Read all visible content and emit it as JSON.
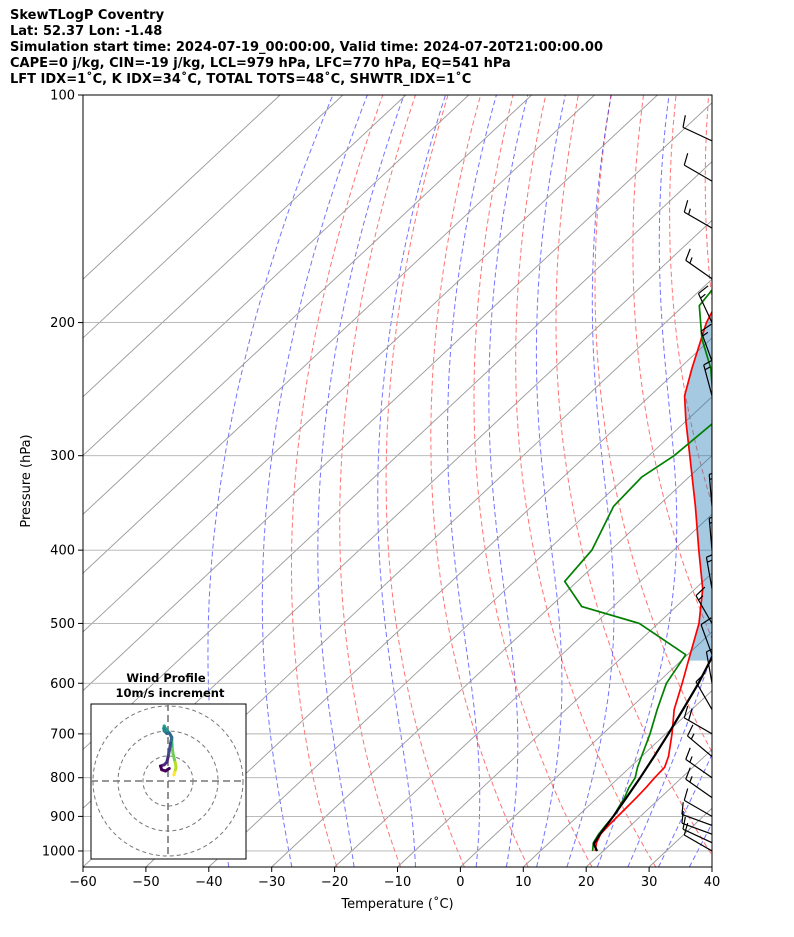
{
  "header": {
    "lines": [
      "SkewTLogP Coventry",
      "Lat: 52.37   Lon: -1.48",
      "Simulation start time: 2024-07-19_00:00:00, Valid time: 2024-07-20T21:00:00.00",
      "CAPE=0 j/kg, CIN=-19 j/kg, LCL=979 hPa, LFC=770 hPa, EQ=541 hPa",
      "LFT IDX=1˚C, K IDX=34˚C, TOTAL TOTS=48˚C, SHWTR_IDX=1˚C"
    ]
  },
  "chart_data": {
    "type": "line",
    "subtype": "skew-T log-P diagram",
    "xlabel": "Temperature (˚C)",
    "ylabel": "Pressure (hPa)",
    "xlim": [
      -60,
      40
    ],
    "ylim": [
      1050,
      100
    ],
    "y_scale": "log",
    "xticks": [
      -60,
      -50,
      -40,
      -30,
      -20,
      -10,
      0,
      10,
      20,
      30,
      40
    ],
    "xtick_labels": [
      "−60",
      "−50",
      "−40",
      "−30",
      "−20",
      "−10",
      "0",
      "10",
      "20",
      "30",
      "40"
    ],
    "yticks": [
      100,
      200,
      300,
      400,
      500,
      600,
      700,
      800,
      900,
      1000
    ],
    "ytick_labels": [
      "100",
      "200",
      "300",
      "400",
      "500",
      "600",
      "700",
      "800",
      "900",
      "1000"
    ],
    "grid": true,
    "series": [
      {
        "role": "temperature",
        "color": "#ff0000",
        "points": [
          [
            1000,
            18.7
          ],
          [
            975,
            17.5
          ],
          [
            950,
            16.7
          ],
          [
            925,
            16.5
          ],
          [
            900,
            16.4
          ],
          [
            875,
            16.3
          ],
          [
            850,
            16.2
          ],
          [
            825,
            16.0
          ],
          [
            800,
            15.7
          ],
          [
            775,
            15.5
          ],
          [
            750,
            14.3
          ],
          [
            700,
            11.0
          ],
          [
            650,
            7.2
          ],
          [
            600,
            4.0
          ],
          [
            550,
            0.4
          ],
          [
            500,
            -3.5
          ],
          [
            450,
            -8.8
          ],
          [
            400,
            -16.0
          ],
          [
            350,
            -24.0
          ],
          [
            300,
            -33.5
          ],
          [
            270,
            -40.0
          ],
          [
            250,
            -44.5
          ],
          [
            230,
            -48.0
          ],
          [
            200,
            -53.5
          ],
          [
            180,
            -56.5
          ],
          [
            160,
            -60.5
          ],
          [
            150,
            -62.5
          ],
          [
            130,
            -68.0
          ],
          [
            115,
            -72.0
          ],
          [
            100,
            -76.0
          ]
        ]
      },
      {
        "role": "dewpoint",
        "color": "#008000",
        "points": [
          [
            1000,
            18.3
          ],
          [
            975,
            17.0
          ],
          [
            950,
            16.4
          ],
          [
            925,
            16.0
          ],
          [
            900,
            15.7
          ],
          [
            875,
            15.0
          ],
          [
            850,
            14.3
          ],
          [
            825,
            13.3
          ],
          [
            800,
            12.6
          ],
          [
            775,
            11.2
          ],
          [
            750,
            10.0
          ],
          [
            700,
            7.5
          ],
          [
            650,
            4.5
          ],
          [
            600,
            1.5
          ],
          [
            550,
            -0.3
          ],
          [
            500,
            -13.0
          ],
          [
            475,
            -25.0
          ],
          [
            440,
            -32.0
          ],
          [
            400,
            -33.0
          ],
          [
            350,
            -37.0
          ],
          [
            320,
            -37.5
          ],
          [
            300,
            -36.0
          ],
          [
            270,
            -35.3
          ],
          [
            250,
            -40.0
          ],
          [
            230,
            -45.0
          ],
          [
            210,
            -51.5
          ],
          [
            190,
            -57.5
          ],
          [
            170,
            -59.0
          ],
          [
            150,
            -62.0
          ],
          [
            100,
            -77.0
          ]
        ]
      },
      {
        "role": "parcel",
        "color": "#000000",
        "points": [
          [
            1000,
            19.0
          ],
          [
            979,
            17.3
          ],
          [
            950,
            16.6
          ],
          [
            900,
            15.7
          ],
          [
            850,
            14.6
          ],
          [
            800,
            13.4
          ],
          [
            750,
            12.0
          ],
          [
            700,
            10.4
          ],
          [
            650,
            8.6
          ],
          [
            600,
            6.6
          ],
          [
            550,
            4.1
          ],
          [
            500,
            1.0
          ],
          [
            450,
            -2.7
          ],
          [
            400,
            -7.2
          ],
          [
            350,
            -12.7
          ],
          [
            300,
            -19.6
          ],
          [
            270,
            -24.5
          ],
          [
            250,
            -28.2
          ],
          [
            200,
            -39.3
          ],
          [
            150,
            -53.9
          ],
          [
            120,
            -65.0
          ],
          [
            100,
            -74.5
          ]
        ]
      }
    ],
    "dry_adiabats_theta_K": [
      250,
      260,
      270,
      280,
      290,
      300,
      310,
      320,
      330,
      340,
      350,
      360,
      370,
      380,
      390,
      400,
      410,
      420,
      430,
      440,
      450,
      460
    ],
    "moist_adiabats_thetaw_C": [
      -40,
      -30,
      -20,
      -10,
      0,
      5,
      10,
      15,
      20,
      25,
      30,
      35,
      40
    ],
    "isotherm_step_C": 10,
    "wind_barbs": {
      "x_temp": 40,
      "levels": [
        {
          "p": 1000,
          "speed_kt": 10,
          "dir_deg": 300
        },
        {
          "p": 975,
          "speed_kt": 10,
          "dir_deg": 295
        },
        {
          "p": 950,
          "speed_kt": 10,
          "dir_deg": 290
        },
        {
          "p": 925,
          "speed_kt": 10,
          "dir_deg": 290
        },
        {
          "p": 900,
          "speed_kt": 10,
          "dir_deg": 300
        },
        {
          "p": 850,
          "speed_kt": 15,
          "dir_deg": 305
        },
        {
          "p": 800,
          "speed_kt": 15,
          "dir_deg": 305
        },
        {
          "p": 750,
          "speed_kt": 15,
          "dir_deg": 310
        },
        {
          "p": 700,
          "speed_kt": 20,
          "dir_deg": 300
        },
        {
          "p": 650,
          "speed_kt": 10,
          "dir_deg": 330
        },
        {
          "p": 600,
          "speed_kt": 10,
          "dir_deg": 350
        },
        {
          "p": 550,
          "speed_kt": 10,
          "dir_deg": 340
        },
        {
          "p": 500,
          "speed_kt": 15,
          "dir_deg": 330
        },
        {
          "p": 450,
          "speed_kt": 15,
          "dir_deg": 350
        },
        {
          "p": 400,
          "speed_kt": 15,
          "dir_deg": 355
        },
        {
          "p": 350,
          "speed_kt": 15,
          "dir_deg": 355
        },
        {
          "p": 300,
          "speed_kt": 15,
          "dir_deg": 0
        },
        {
          "p": 270,
          "speed_kt": 10,
          "dir_deg": 5
        },
        {
          "p": 250,
          "speed_kt": 15,
          "dir_deg": 345
        },
        {
          "p": 225,
          "speed_kt": 15,
          "dir_deg": 340
        },
        {
          "p": 200,
          "speed_kt": 15,
          "dir_deg": 335
        },
        {
          "p": 175,
          "speed_kt": 15,
          "dir_deg": 305
        },
        {
          "p": 150,
          "speed_kt": 15,
          "dir_deg": 300
        },
        {
          "p": 130,
          "speed_kt": 10,
          "dir_deg": 300
        },
        {
          "p": 115,
          "speed_kt": 10,
          "dir_deg": 295
        }
      ]
    },
    "hodograph": {
      "title": "Wind Profile",
      "subtitle": "10m/s increment",
      "ring_step_ms": 10,
      "points_ms": [
        [
          2.4,
          2.4
        ],
        [
          2.6,
          3.4
        ],
        [
          3.0,
          4.5
        ],
        [
          3.2,
          5.5
        ],
        [
          3.0,
          6.8
        ],
        [
          2.6,
          8.5
        ],
        [
          2.0,
          11.0
        ],
        [
          1.6,
          14.0
        ],
        [
          1.5,
          17.0
        ],
        [
          1.0,
          18.5
        ],
        [
          0.0,
          19.8
        ],
        [
          -1.0,
          21.0
        ],
        [
          -1.5,
          22.0
        ],
        [
          -1.7,
          21.0
        ],
        [
          -1.5,
          20.0
        ],
        [
          -0.5,
          19.0
        ],
        [
          0.5,
          19.2
        ],
        [
          1.5,
          17.5
        ],
        [
          1.0,
          15.0
        ],
        [
          0.5,
          12.0
        ],
        [
          0.0,
          9.5
        ],
        [
          -0.5,
          7.5
        ],
        [
          -1.5,
          6.5
        ],
        [
          -3.0,
          6.0
        ],
        [
          -2.5,
          4.5
        ],
        [
          -1.0,
          4.0
        ],
        [
          0.5,
          5.0
        ]
      ]
    }
  }
}
